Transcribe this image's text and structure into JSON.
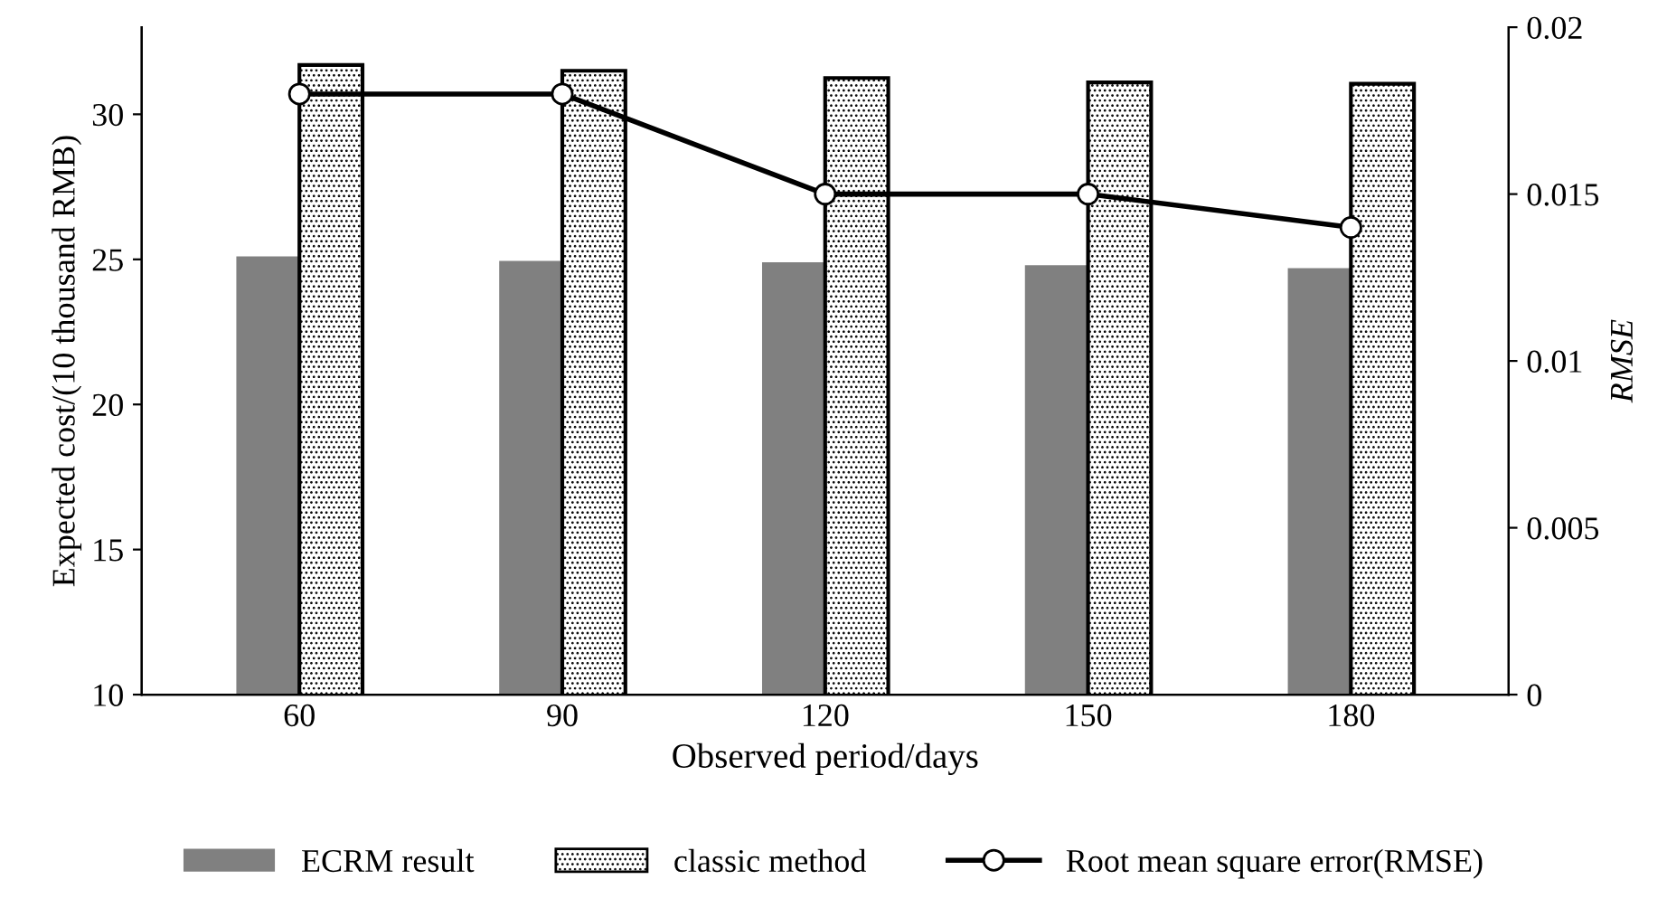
{
  "chart_data": {
    "type": "bar",
    "xlabel": "Observed period/days",
    "ylabel": "Expected cost/(10 thousand RMB)",
    "y2label": "RMSE",
    "categories": [
      "60",
      "90",
      "120",
      "150",
      "180"
    ],
    "series": [
      {
        "name": "ECRM result",
        "color": "#808080",
        "values": [
          25.1,
          24.95,
          24.9,
          24.8,
          24.7
        ]
      },
      {
        "name": "classic method",
        "color": "#000000",
        "values": [
          31.7,
          31.5,
          31.25,
          31.1,
          31.05
        ]
      },
      {
        "name": "Root mean square error(RMSE)",
        "type": "line",
        "axis": "y2",
        "color": "#000000",
        "marker": "circle",
        "values": [
          0.018,
          0.018,
          0.015,
          0.015,
          0.014
        ]
      }
    ],
    "ylim": [
      10,
      33
    ],
    "yticks": [
      10,
      15,
      20,
      25,
      30
    ],
    "y2lim": [
      0,
      0.02
    ],
    "y2ticks": [
      0,
      0.005,
      0.01,
      0.015,
      0.02
    ],
    "legend": "bottom",
    "grid": false
  }
}
